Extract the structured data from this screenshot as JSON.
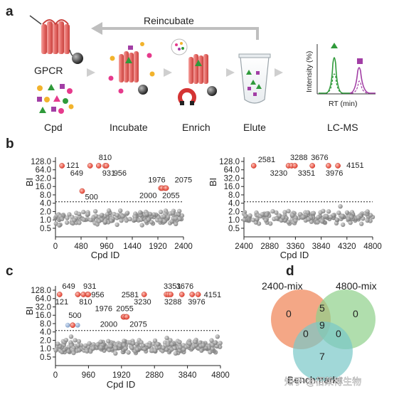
{
  "panels": [
    "a",
    "b",
    "c",
    "d"
  ],
  "workflow": {
    "reincubate": "Reincubate",
    "gpcr": "GPCR",
    "cpd": "Cpd",
    "steps": [
      "Incubate",
      "Enrich",
      "Elute",
      "LC-MS"
    ],
    "ylabel": "Intensity (%)",
    "xlabel": "RT (min)"
  },
  "venn": {
    "sets": [
      "2400-mix",
      "4800-mix",
      "Benchmark"
    ],
    "regions": {
      "only_2400": "0",
      "only_4800": "0",
      "only_benchmark": "7",
      "ab": "5",
      "abc": "9",
      "ac": "0",
      "bc": "0"
    },
    "colors": {
      "2400-mix": "#f08a5d",
      "4800-mix": "#8fd08a",
      "Benchmark": "#79c7c7"
    }
  },
  "watermark": "知乎 @佰莱博生物",
  "chart_data": [
    {
      "type": "scatter",
      "panel": "b-left",
      "xlabel": "Cpd ID",
      "ylabel": "BI",
      "xlim": [
        0,
        2400
      ],
      "xticks": [
        "0",
        "480",
        "960",
        "1440",
        "1920",
        "2400"
      ],
      "yscale": "log2",
      "ylim": [
        0.35,
        128
      ],
      "yticks": [
        "0.5",
        "1.0",
        "2.0",
        "4.0",
        "8.0",
        "16.0",
        "32.0",
        "64.0",
        "128.0"
      ],
      "threshold": 4.5,
      "hits": [
        {
          "id": "121",
          "y": 90
        },
        {
          "id": "649",
          "y": 90
        },
        {
          "id": "810",
          "y": 90
        },
        {
          "id": "931",
          "y": 90
        },
        {
          "id": "956",
          "y": 90
        },
        {
          "id": "500",
          "y": 11
        },
        {
          "id": "1976",
          "y": 14
        },
        {
          "id": "2000",
          "y": 14
        },
        {
          "id": "2055",
          "y": 14
        },
        {
          "id": "2075",
          "y": 14
        }
      ]
    },
    {
      "type": "scatter",
      "panel": "b-right",
      "xlabel": "Cpd ID",
      "ylabel": "BI",
      "xlim": [
        2400,
        4800
      ],
      "xticks": [
        "2400",
        "2880",
        "3360",
        "3840",
        "4320",
        "4800"
      ],
      "yscale": "log2",
      "ylim": [
        0.35,
        128
      ],
      "yticks": [
        "0.5",
        "1.0",
        "2.0",
        "4.0",
        "8.0",
        "16.0",
        "32.0",
        "64.0",
        "128.0"
      ],
      "threshold": 4.5,
      "hits": [
        {
          "id": "2581",
          "y": 90
        },
        {
          "id": "3230",
          "y": 90
        },
        {
          "id": "3288",
          "y": 90
        },
        {
          "id": "3351",
          "y": 90
        },
        {
          "id": "3676",
          "y": 90
        },
        {
          "id": "3976",
          "y": 90
        },
        {
          "id": "4151",
          "y": 90
        }
      ]
    },
    {
      "type": "scatter",
      "panel": "c",
      "xlabel": "Cpd ID",
      "ylabel": "BI",
      "xlim": [
        0,
        4800
      ],
      "xticks": [
        "0",
        "960",
        "1920",
        "2880",
        "3840",
        "4800"
      ],
      "yscale": "log2",
      "ylim": [
        0.35,
        128
      ],
      "yticks": [
        "0.5",
        "1.0",
        "2.0",
        "4.0",
        "8.0",
        "16.0",
        "32.0",
        "64.0",
        "128.0"
      ],
      "threshold": 4.5,
      "hits": [
        {
          "id": "121",
          "y": 90
        },
        {
          "id": "649",
          "y": 90
        },
        {
          "id": "810",
          "y": 90
        },
        {
          "id": "931",
          "y": 90
        },
        {
          "id": "956",
          "y": 90
        },
        {
          "id": "500",
          "y": 7
        },
        {
          "id": "1976",
          "y": 14
        },
        {
          "id": "2000",
          "y": 14
        },
        {
          "id": "2055",
          "y": 14
        },
        {
          "id": "2075",
          "y": 14
        },
        {
          "id": "2581",
          "y": 90
        },
        {
          "id": "3230",
          "y": 90
        },
        {
          "id": "3288",
          "y": 90
        },
        {
          "id": "3351",
          "y": 90
        },
        {
          "id": "3676",
          "y": 90
        },
        {
          "id": "3976",
          "y": 90
        },
        {
          "id": "4151",
          "y": 90
        }
      ]
    }
  ]
}
